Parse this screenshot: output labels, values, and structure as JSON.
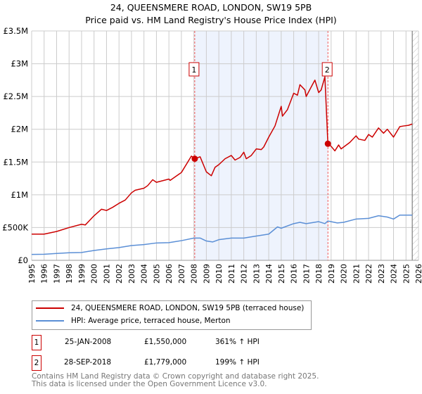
{
  "title": "24, QUEENSMERE ROAD, LONDON, SW19 5PB",
  "subtitle": "Price paid vs. HM Land Registry's House Price Index (HPI)",
  "colors": {
    "property": "#cc0000",
    "hpi": "#5b8fd6",
    "shade": "#eef3fd"
  },
  "chart_data": {
    "type": "line",
    "title": "24, QUEENSMERE ROAD, LONDON, SW19 5PB",
    "xlabel": "",
    "ylabel": "",
    "xlim": [
      1995,
      2026
    ],
    "ylim": [
      0,
      3500000
    ],
    "x_ticks": [
      "1995",
      "1996",
      "1997",
      "1998",
      "1999",
      "2000",
      "2001",
      "2002",
      "2003",
      "2004",
      "2005",
      "2006",
      "2007",
      "2008",
      "2009",
      "2010",
      "2011",
      "2012",
      "2013",
      "2014",
      "2015",
      "2016",
      "2017",
      "2018",
      "2019",
      "2020",
      "2021",
      "2022",
      "2023",
      "2024",
      "2025",
      "2026"
    ],
    "y_ticks": [
      {
        "v": 0,
        "l": "£0"
      },
      {
        "v": 500000,
        "l": "£500K"
      },
      {
        "v": 1000000,
        "l": "£1M"
      },
      {
        "v": 1500000,
        "l": "£1.5M"
      },
      {
        "v": 2000000,
        "l": "£2M"
      },
      {
        "v": 2500000,
        "l": "£2.5M"
      },
      {
        "v": 3000000,
        "l": "£3M"
      },
      {
        "v": 3500000,
        "l": "£3.5M"
      }
    ],
    "grid": true,
    "shaded_range": [
      2008.07,
      2018.74
    ],
    "hatched_from": 2025.5,
    "series": [
      {
        "name": "24, QUEENSMERE ROAD, LONDON, SW19 5PB (terraced house)",
        "color": "#cc0000",
        "x": [
          1995,
          1996,
          1996.5,
          1997,
          1998,
          1999,
          1999.3,
          2000,
          2000.6,
          2001,
          2001.5,
          2002,
          2002.5,
          2003,
          2003.3,
          2004,
          2004.3,
          2004.7,
          2005,
          2006,
          2006.1,
          2007,
          2007.8,
          2008.07,
          2008.5,
          2009,
          2009.4,
          2009.7,
          2010,
          2010.5,
          2011,
          2011.3,
          2011.7,
          2012,
          2012.2,
          2012.6,
          2013,
          2013.4,
          2013.6,
          2014,
          2014.5,
          2015,
          2015.1,
          2015.5,
          2016,
          2016.3,
          2016.5,
          2016.9,
          2017,
          2017.5,
          2017.7,
          2018,
          2018.2,
          2018.5,
          2018.74,
          2019,
          2019.3,
          2019.6,
          2019.8,
          2020.5,
          2021,
          2021.2,
          2021.7,
          2022,
          2022.3,
          2022.8,
          2023.2,
          2023.5,
          2024,
          2024.5,
          2024.8,
          2025.2,
          2025.5
        ],
        "y": [
          400000,
          400000,
          420000,
          440000,
          500000,
          550000,
          540000,
          680000,
          780000,
          760000,
          810000,
          870000,
          920000,
          1030000,
          1070000,
          1100000,
          1140000,
          1230000,
          1190000,
          1240000,
          1220000,
          1340000,
          1590000,
          1550000,
          1580000,
          1350000,
          1290000,
          1420000,
          1460000,
          1550000,
          1600000,
          1530000,
          1570000,
          1650000,
          1550000,
          1600000,
          1700000,
          1690000,
          1730000,
          1880000,
          2050000,
          2350000,
          2200000,
          2300000,
          2550000,
          2520000,
          2680000,
          2600000,
          2500000,
          2680000,
          2750000,
          2560000,
          2600000,
          2800000,
          1779000,
          1740000,
          1670000,
          1760000,
          1700000,
          1800000,
          1900000,
          1850000,
          1830000,
          1920000,
          1880000,
          2020000,
          1940000,
          2000000,
          1880000,
          2040000,
          2050000,
          2060000,
          2080000
        ]
      },
      {
        "name": "HPI: Average price, terraced house, Merton",
        "color": "#5b8fd6",
        "x": [
          1995,
          1996,
          1997,
          1998,
          1999,
          2000,
          2001,
          2002,
          2003,
          2004,
          2005,
          2006,
          2007,
          2008,
          2008.5,
          2009,
          2009.5,
          2010,
          2011,
          2012,
          2013,
          2014,
          2014.7,
          2015,
          2016,
          2016.5,
          2017,
          2018,
          2018.5,
          2018.74,
          2019.5,
          2020,
          2021,
          2022,
          2022.8,
          2023.5,
          2024,
          2024.5,
          2025.5
        ],
        "y": [
          90000,
          92000,
          105000,
          115000,
          120000,
          150000,
          175000,
          195000,
          225000,
          240000,
          265000,
          270000,
          300000,
          340000,
          340000,
          295000,
          280000,
          315000,
          340000,
          340000,
          370000,
          400000,
          510000,
          490000,
          560000,
          580000,
          560000,
          590000,
          560000,
          600000,
          570000,
          580000,
          630000,
          640000,
          680000,
          660000,
          630000,
          690000,
          690000
        ]
      }
    ],
    "annotations": [
      {
        "label": "1",
        "x": 2008.07,
        "y": 1550000
      },
      {
        "label": "2",
        "x": 2018.74,
        "y": 1779000
      }
    ],
    "legend_position": "below"
  },
  "legend": [
    {
      "label": "24, QUEENSMERE ROAD, LONDON, SW19 5PB (terraced house)"
    },
    {
      "label": "HPI: Average price, terraced house, Merton"
    }
  ],
  "transactions": [
    {
      "num": "1",
      "date": "25-JAN-2008",
      "price": "£1,550,000",
      "hpi": "361% ↑ HPI"
    },
    {
      "num": "2",
      "date": "28-SEP-2018",
      "price": "£1,779,000",
      "hpi": "199% ↑ HPI"
    }
  ],
  "footer": [
    "Contains HM Land Registry data © Crown copyright and database right 2025.",
    "This data is licensed under the Open Government Licence v3.0."
  ]
}
